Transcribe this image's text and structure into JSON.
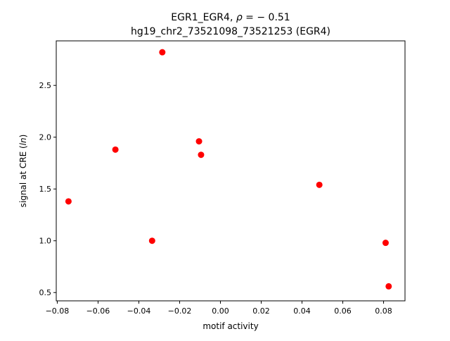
{
  "chart_data": {
    "type": "scatter",
    "title_line1_prefix": "EGR1_EGR4, ",
    "title_line1_rho": "ρ",
    "title_line1_suffix": " = − 0.51",
    "title_line2": "hg19_chr2_73521098_73521253 (EGR4)",
    "xlabel": "motif activity",
    "ylabel_prefix": "signal at CRE (",
    "ylabel_italic": "ln",
    "ylabel_suffix": ")",
    "xlim": [
      -0.0805,
      0.0905
    ],
    "ylim": [
      0.42,
      2.93
    ],
    "xticks": [
      -0.08,
      -0.06,
      -0.04,
      -0.02,
      0.0,
      0.02,
      0.04,
      0.06,
      0.08
    ],
    "xtick_labels": [
      "−0.08",
      "−0.06",
      "−0.04",
      "−0.02",
      "0.00",
      "0.02",
      "0.04",
      "0.06",
      "0.08"
    ],
    "yticks": [
      0.5,
      1.0,
      1.5,
      2.0,
      2.5
    ],
    "ytick_labels": [
      "0.5",
      "1.0",
      "1.5",
      "2.0",
      "2.5"
    ],
    "grid": false,
    "marker_color": "#ff0000",
    "points": [
      {
        "x": -0.0745,
        "y": 1.38
      },
      {
        "x": -0.0515,
        "y": 1.88
      },
      {
        "x": -0.0335,
        "y": 1.0
      },
      {
        "x": -0.0285,
        "y": 2.82
      },
      {
        "x": -0.0105,
        "y": 1.96
      },
      {
        "x": -0.0095,
        "y": 1.83
      },
      {
        "x": 0.0485,
        "y": 1.54
      },
      {
        "x": 0.081,
        "y": 0.98
      },
      {
        "x": 0.0825,
        "y": 0.56
      }
    ]
  }
}
